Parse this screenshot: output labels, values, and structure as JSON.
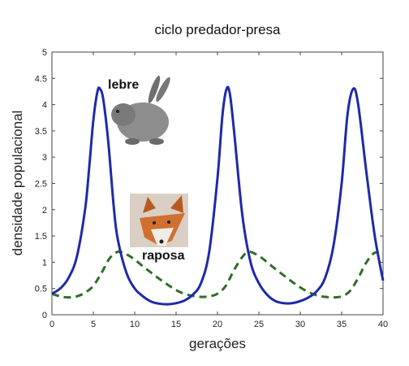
{
  "chart_data": {
    "type": "line",
    "title": "ciclo predador-presa",
    "xlabel": "gerações",
    "ylabel": "densidade populacional",
    "xlim": [
      0,
      40
    ],
    "ylim": [
      0,
      5
    ],
    "xticks": [
      0,
      5,
      10,
      15,
      20,
      25,
      30,
      35,
      40
    ],
    "yticks": [
      0,
      0.5,
      1,
      1.5,
      2,
      2.5,
      3,
      3.5,
      4,
      4.5,
      5
    ],
    "grid": false,
    "legend": "none",
    "series": [
      {
        "name": "lebre",
        "color": "#1f2aa8",
        "style": "solid",
        "points": [
          [
            0,
            0.4
          ],
          [
            1,
            0.5
          ],
          [
            2,
            0.7
          ],
          [
            3,
            1.1
          ],
          [
            4,
            2.0
          ],
          [
            4.5,
            2.8
          ],
          [
            5,
            3.7
          ],
          [
            5.5,
            4.25
          ],
          [
            5.8,
            4.3
          ],
          [
            6.2,
            4.1
          ],
          [
            6.8,
            3.3
          ],
          [
            7.5,
            2.0
          ],
          [
            8,
            1.4
          ],
          [
            9,
            0.8
          ],
          [
            10,
            0.5
          ],
          [
            11,
            0.35
          ],
          [
            12,
            0.25
          ],
          [
            13,
            0.21
          ],
          [
            14,
            0.2
          ],
          [
            15,
            0.22
          ],
          [
            16,
            0.27
          ],
          [
            17,
            0.38
          ],
          [
            18,
            0.6
          ],
          [
            19,
            1.2
          ],
          [
            20,
            2.6
          ],
          [
            20.6,
            3.8
          ],
          [
            21.1,
            4.3
          ],
          [
            21.5,
            4.2
          ],
          [
            22,
            3.5
          ],
          [
            23,
            1.9
          ],
          [
            24,
            1.0
          ],
          [
            25,
            0.6
          ],
          [
            26,
            0.38
          ],
          [
            27,
            0.26
          ],
          [
            28,
            0.22
          ],
          [
            29,
            0.22
          ],
          [
            30,
            0.26
          ],
          [
            31,
            0.33
          ],
          [
            32,
            0.45
          ],
          [
            33,
            0.7
          ],
          [
            34,
            1.3
          ],
          [
            35,
            2.5
          ],
          [
            35.7,
            3.8
          ],
          [
            36.4,
            4.3
          ],
          [
            37,
            4.0
          ],
          [
            38,
            2.7
          ],
          [
            39,
            1.5
          ],
          [
            40,
            0.65
          ]
        ]
      },
      {
        "name": "raposa",
        "color": "#2e6e27",
        "style": "dashed",
        "points": [
          [
            0,
            0.4
          ],
          [
            1,
            0.35
          ],
          [
            2,
            0.33
          ],
          [
            3,
            0.35
          ],
          [
            4,
            0.42
          ],
          [
            5,
            0.55
          ],
          [
            6,
            0.8
          ],
          [
            7,
            1.08
          ],
          [
            8,
            1.2
          ],
          [
            9,
            1.15
          ],
          [
            10,
            1.05
          ],
          [
            11,
            0.92
          ],
          [
            12,
            0.8
          ],
          [
            13,
            0.68
          ],
          [
            14,
            0.57
          ],
          [
            15,
            0.47
          ],
          [
            16,
            0.4
          ],
          [
            17,
            0.36
          ],
          [
            18,
            0.34
          ],
          [
            19,
            0.35
          ],
          [
            20,
            0.4
          ],
          [
            21,
            0.55
          ],
          [
            22,
            0.85
          ],
          [
            23,
            1.1
          ],
          [
            23.8,
            1.2
          ],
          [
            25,
            1.12
          ],
          [
            26,
            1.0
          ],
          [
            27,
            0.87
          ],
          [
            28,
            0.75
          ],
          [
            29,
            0.63
          ],
          [
            30,
            0.52
          ],
          [
            31,
            0.43
          ],
          [
            32,
            0.37
          ],
          [
            33,
            0.34
          ],
          [
            34,
            0.33
          ],
          [
            35,
            0.35
          ],
          [
            36,
            0.45
          ],
          [
            37,
            0.7
          ],
          [
            38,
            1.0
          ],
          [
            39,
            1.18
          ],
          [
            40,
            1.15
          ]
        ]
      }
    ],
    "annotations": [
      {
        "text": "lebre",
        "icon": "hare-photo-icon"
      },
      {
        "text": "raposa",
        "icon": "fox-photo-icon"
      }
    ]
  }
}
